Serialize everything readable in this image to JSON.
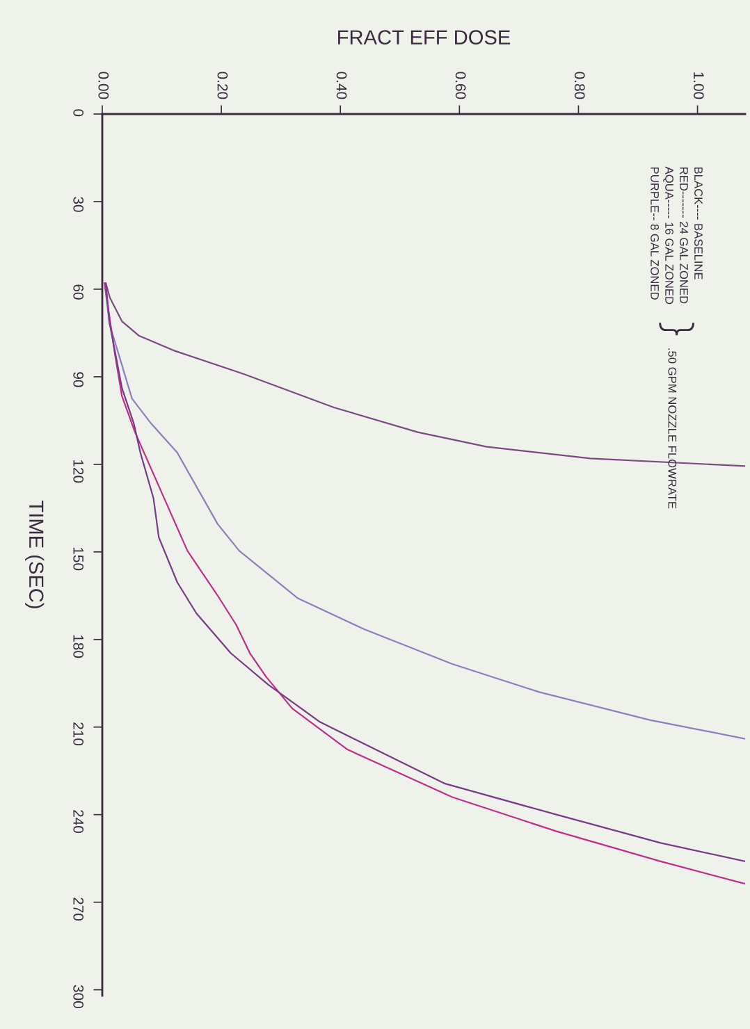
{
  "chart_data": {
    "type": "line",
    "xlabel": "FRACT EFF DOSE",
    "ylabel": "TIME (SEC)",
    "ylim": [
      302,
      0
    ],
    "yticks": [
      0,
      30,
      60,
      90,
      120,
      150,
      180,
      210,
      240,
      270,
      300
    ],
    "xlim": [
      0,
      1.08
    ],
    "xticks": [
      {
        "value": 0,
        "label": "0.00"
      },
      {
        "value": 0.2,
        "label": "0.20"
      },
      {
        "value": 0.4,
        "label": "0.40"
      },
      {
        "value": 0.6,
        "label": "0.60"
      },
      {
        "value": 0.8,
        "label": "0.80"
      },
      {
        "value": 1.0,
        "label": "1.00"
      }
    ],
    "grid": false,
    "legend": false,
    "marker": "none",
    "line_style": "solid",
    "annotations": [
      "BLACK---- BASELINE",
      "RED------- 24 GAL ZONED",
      "AQUA----- 16 GAL ZONED",
      "PURPLE-- 8 GAL ZONED",
      ".50 GPM NOZZLE FLOWRATE"
    ],
    "series": [
      {
        "color": "#7a4a80",
        "values": [
          58,
          63,
          71,
          76,
          81,
          89,
          100.5,
          109,
          114,
          118,
          120.6
        ],
        "x": [
          0.006,
          0.013,
          0.033,
          0.062,
          0.12,
          0.237,
          0.389,
          0.53,
          0.646,
          0.82,
          1.08
        ]
      },
      {
        "color": "#8a80c0",
        "values": [
          58,
          71.8,
          97.5,
          106,
          116,
          140.5,
          149.6,
          165.8,
          176.5,
          188.4,
          198,
          207.6,
          214
        ],
        "x": [
          0.004,
          0.012,
          0.05,
          0.082,
          0.126,
          0.194,
          0.23,
          0.328,
          0.44,
          0.588,
          0.734,
          0.92,
          1.08
        ]
      },
      {
        "color": "#c0308a",
        "values": [
          58,
          82,
          96.6,
          109,
          149.6,
          165,
          175,
          184.7,
          192.7,
          203.6,
          217.7,
          234,
          245.7,
          256,
          263.7
        ],
        "x": [
          0.004,
          0.021,
          0.033,
          0.055,
          0.143,
          0.194,
          0.225,
          0.248,
          0.275,
          0.319,
          0.412,
          0.588,
          0.763,
          0.938,
          1.08
        ]
      },
      {
        "color": "#7a3a8a",
        "values": [
          58,
          62.4,
          71.3,
          93.8,
          106,
          116,
          131.6,
          145,
          160.4,
          171,
          184.7,
          195.5,
          208.3,
          229.4,
          240,
          249.7,
          256
        ],
        "x": [
          0.006,
          0.008,
          0.012,
          0.033,
          0.053,
          0.064,
          0.086,
          0.095,
          0.126,
          0.158,
          0.216,
          0.279,
          0.366,
          0.576,
          0.763,
          0.938,
          1.08
        ]
      }
    ]
  }
}
